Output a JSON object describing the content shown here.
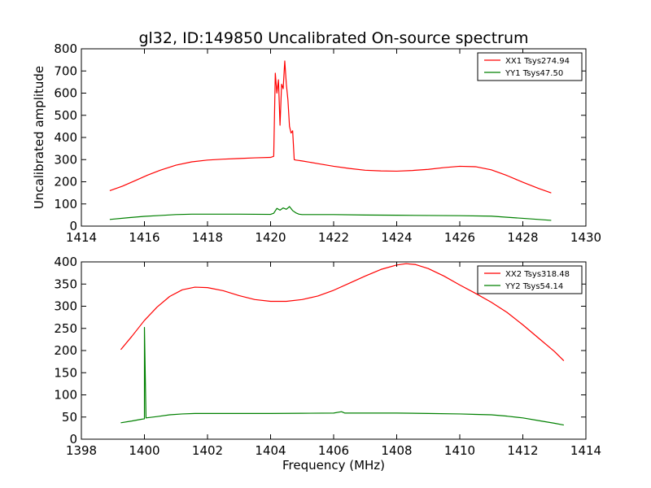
{
  "figure_title": "gl32, ID:149850 Uncalibrated On-source spectrum",
  "colors": {
    "xx": "#ff0000",
    "yy": "#008000",
    "axis": "#000000",
    "background": "#ffffff"
  },
  "chart_data": [
    {
      "type": "line",
      "title": "gl32, ID:149850 Uncalibrated On-source spectrum",
      "xlabel": "",
      "ylabel": "Uncalibrated amplitude",
      "xlim": [
        1414,
        1430
      ],
      "ylim": [
        0,
        800
      ],
      "xticks": [
        1414,
        1416,
        1418,
        1420,
        1422,
        1424,
        1426,
        1428,
        1430
      ],
      "yticks": [
        0,
        100,
        200,
        300,
        400,
        500,
        600,
        700,
        800
      ],
      "grid": false,
      "legend_position": "top-right",
      "series": [
        {
          "name": "XX1 Tsys274.94",
          "color": "#ff0000",
          "x": [
            1414.9,
            1415.3,
            1415.7,
            1416.1,
            1416.5,
            1417.0,
            1417.5,
            1418.0,
            1418.5,
            1419.0,
            1419.5,
            1420.0,
            1420.1,
            1420.15,
            1420.2,
            1420.25,
            1420.3,
            1420.35,
            1420.4,
            1420.45,
            1420.5,
            1420.55,
            1420.6,
            1420.65,
            1420.7,
            1420.75,
            1420.8,
            1420.85,
            1420.9,
            1420.95,
            1421.0,
            1421.5,
            1422.0,
            1422.5,
            1423.0,
            1423.5,
            1424.0,
            1424.5,
            1425.0,
            1425.5,
            1426.0,
            1426.5,
            1427.0,
            1427.5,
            1428.0,
            1428.5,
            1428.9
          ],
          "y": [
            160,
            180,
            205,
            230,
            252,
            275,
            290,
            298,
            302,
            305,
            308,
            310,
            315,
            690,
            600,
            660,
            455,
            640,
            620,
            745,
            640,
            570,
            450,
            420,
            430,
            300,
            298,
            297,
            296,
            295,
            294,
            282,
            270,
            260,
            252,
            249,
            248,
            251,
            256,
            264,
            270,
            268,
            254,
            228,
            198,
            170,
            150
          ]
        },
        {
          "name": "YY1 Tsys47.50",
          "color": "#008000",
          "x": [
            1414.9,
            1415.5,
            1416.0,
            1416.5,
            1417.0,
            1417.5,
            1418.0,
            1419.0,
            1420.0,
            1420.1,
            1420.2,
            1420.3,
            1420.4,
            1420.5,
            1420.6,
            1420.7,
            1420.8,
            1420.9,
            1421.0,
            1422.0,
            1423.0,
            1424.0,
            1425.0,
            1426.0,
            1427.0,
            1427.5,
            1428.0,
            1428.5,
            1428.9
          ],
          "y": [
            30,
            38,
            44,
            48,
            52,
            54,
            54,
            54,
            53,
            58,
            80,
            72,
            82,
            76,
            88,
            70,
            60,
            54,
            52,
            52,
            50,
            49,
            48,
            47,
            45,
            40,
            35,
            30,
            26
          ]
        }
      ]
    },
    {
      "type": "line",
      "title": "",
      "xlabel": "Frequency (MHz)",
      "ylabel": "",
      "xlim": [
        1398,
        1414
      ],
      "ylim": [
        0,
        400
      ],
      "xticks": [
        1398,
        1400,
        1402,
        1404,
        1406,
        1408,
        1410,
        1412,
        1414
      ],
      "yticks": [
        0,
        50,
        100,
        150,
        200,
        250,
        300,
        350,
        400
      ],
      "grid": false,
      "legend_position": "top-right",
      "series": [
        {
          "name": "XX2 Tsys318.48",
          "color": "#ff0000",
          "x": [
            1399.25,
            1399.6,
            1400.0,
            1400.4,
            1400.8,
            1401.2,
            1401.6,
            1402.0,
            1402.5,
            1403.0,
            1403.5,
            1404.0,
            1404.5,
            1405.0,
            1405.5,
            1406.0,
            1406.5,
            1407.0,
            1407.5,
            1408.0,
            1408.3,
            1408.6,
            1409.0,
            1409.5,
            1410.0,
            1410.5,
            1411.0,
            1411.5,
            1412.0,
            1412.5,
            1413.0,
            1413.3
          ],
          "y": [
            202,
            232,
            268,
            298,
            322,
            337,
            343,
            342,
            335,
            324,
            315,
            311,
            311,
            315,
            323,
            336,
            352,
            368,
            383,
            393,
            396,
            394,
            385,
            368,
            348,
            329,
            309,
            286,
            258,
            228,
            198,
            177
          ]
        },
        {
          "name": "YY2 Tsys54.14",
          "color": "#008000",
          "x": [
            1399.25,
            1399.6,
            1399.9,
            1400.0,
            1400.0,
            1400.05,
            1400.4,
            1400.8,
            1401.2,
            1401.6,
            1402.0,
            1403.0,
            1404.0,
            1405.0,
            1406.0,
            1406.25,
            1406.35,
            1407.0,
            1408.0,
            1409.0,
            1410.0,
            1410.5,
            1411.0,
            1411.5,
            1412.0,
            1412.5,
            1413.0,
            1413.3
          ],
          "y": [
            37,
            41,
            45,
            46,
            252,
            48,
            51,
            55,
            57,
            58,
            58,
            58,
            58,
            58.5,
            59,
            62,
            59,
            59,
            59,
            58,
            57,
            56,
            55,
            52,
            48,
            42,
            36,
            32
          ]
        }
      ]
    }
  ]
}
